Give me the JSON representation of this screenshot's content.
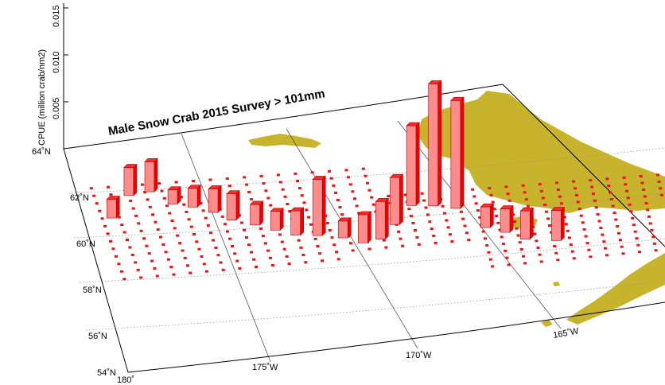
{
  "title": "Male Snow Crab 2015 Survey > 101mm",
  "z_axis": {
    "label": "CPUE (million crab/nm2)",
    "ticks": [
      "0.005",
      "0.010",
      "0.015"
    ]
  },
  "lat_labels": [
    "54˚N",
    "56˚N",
    "58˚N",
    "60˚N",
    "62˚N",
    "64˚N"
  ],
  "lon_labels": [
    "180˚",
    "175˚W",
    "170˚W",
    "165˚W"
  ],
  "colors": {
    "bar_front": "#ff8c8c",
    "bar_side": "#f20000",
    "bar_top": "#ff2a2a",
    "station": "#ee1111",
    "land": "#c8b42c",
    "grid": "#777777"
  },
  "chart_data": {
    "type": "3d-bar-map",
    "title": "Male Snow Crab 2015 Survey > 101mm",
    "zlabel": "CPUE (million crab/nm2)",
    "zlim": [
      0,
      0.015
    ],
    "unit": "million crab/nm2",
    "stations_cpue": [
      {
        "lon": -178.7,
        "lat": 60.55,
        "cpue": 0.002
      },
      {
        "lon": -177.9,
        "lat": 61.45,
        "cpue": 0.003
      },
      {
        "lon": -177.2,
        "lat": 61.55,
        "cpue": 0.0032
      },
      {
        "lon": -176.6,
        "lat": 60.95,
        "cpue": 0.0015
      },
      {
        "lon": -176.0,
        "lat": 60.75,
        "cpue": 0.002
      },
      {
        "lon": -175.4,
        "lat": 60.45,
        "cpue": 0.0025
      },
      {
        "lon": -174.9,
        "lat": 60.05,
        "cpue": 0.0028
      },
      {
        "lon": -174.2,
        "lat": 59.75,
        "cpue": 0.0022
      },
      {
        "lon": -173.6,
        "lat": 59.45,
        "cpue": 0.002
      },
      {
        "lon": -173.0,
        "lat": 59.15,
        "cpue": 0.0026
      },
      {
        "lon": -172.3,
        "lat": 59.05,
        "cpue": 0.006
      },
      {
        "lon": -171.5,
        "lat": 58.85,
        "cpue": 0.0018
      },
      {
        "lon": -170.9,
        "lat": 58.55,
        "cpue": 0.003
      },
      {
        "lon": -170.3,
        "lat": 58.65,
        "cpue": 0.004
      },
      {
        "lon": -169.7,
        "lat": 59.25,
        "cpue": 0.005
      },
      {
        "lon": -169.0,
        "lat": 60.05,
        "cpue": 0.0085
      },
      {
        "lon": -168.3,
        "lat": 59.95,
        "cpue": 0.013
      },
      {
        "lon": -167.6,
        "lat": 59.75,
        "cpue": 0.0115
      },
      {
        "lon": -166.8,
        "lat": 58.75,
        "cpue": 0.0022
      },
      {
        "lon": -166.2,
        "lat": 58.45,
        "cpue": 0.0025
      },
      {
        "lon": -165.6,
        "lat": 58.05,
        "cpue": 0.003
      },
      {
        "lon": -164.6,
        "lat": 57.85,
        "cpue": 0.0032
      }
    ]
  }
}
